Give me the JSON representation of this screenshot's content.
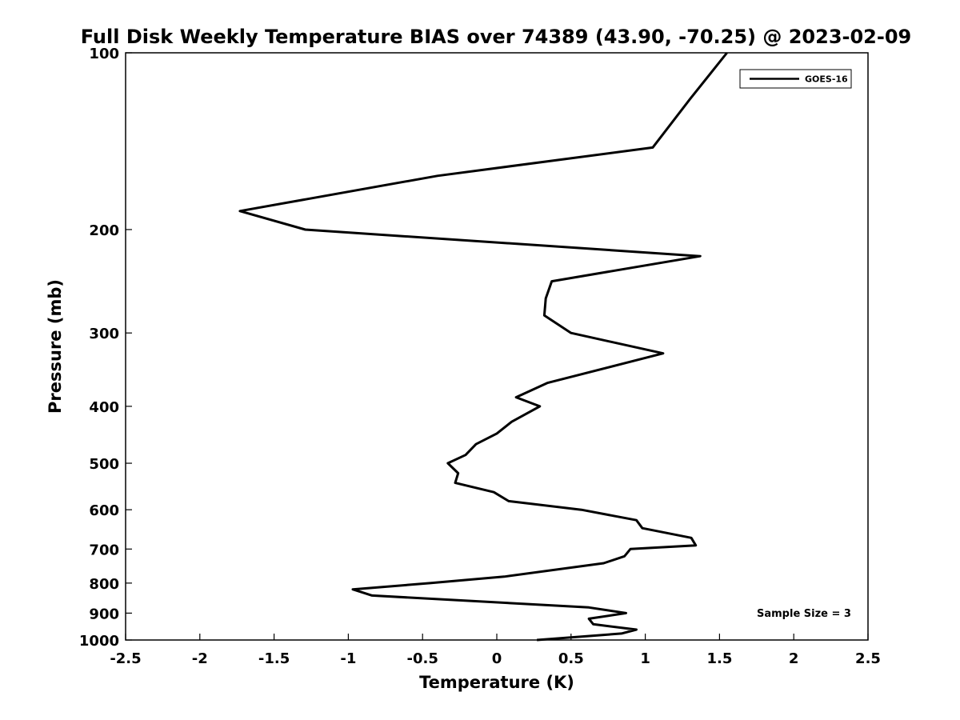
{
  "chart_data": {
    "type": "line",
    "title": "Full Disk Weekly Temperature BIAS over 74389 (43.90, -70.25) @ 2023-02-09",
    "xlabel": "Temperature (K)",
    "ylabel": "Pressure (mb)",
    "xlim": [
      -2.5,
      2.5
    ],
    "ylim": [
      1000,
      100
    ],
    "y_scale": "log",
    "x_ticks": [
      "-2.5",
      "-2",
      "-1.5",
      "-1",
      "-0.5",
      "0",
      "0.5",
      "1",
      "1.5",
      "2",
      "2.5"
    ],
    "y_ticks": [
      "100",
      "200",
      "300",
      "400",
      "500",
      "600",
      "700",
      "800",
      "900",
      "1000"
    ],
    "grid": false,
    "legend_position": "top-right",
    "annotation": "Sample Size = 3",
    "line_color": "#000000",
    "series": [
      {
        "name": "GOES-16",
        "points": [
          {
            "t": 1.55,
            "p": 100
          },
          {
            "t": 1.3,
            "p": 120
          },
          {
            "t": 1.05,
            "p": 145
          },
          {
            "t": -0.4,
            "p": 162
          },
          {
            "t": -1.73,
            "p": 186
          },
          {
            "t": -1.29,
            "p": 200
          },
          {
            "t": 1.37,
            "p": 222
          },
          {
            "t": 0.37,
            "p": 245
          },
          {
            "t": 0.33,
            "p": 262
          },
          {
            "t": 0.32,
            "p": 280
          },
          {
            "t": 0.5,
            "p": 300
          },
          {
            "t": 1.12,
            "p": 325
          },
          {
            "t": 0.34,
            "p": 365
          },
          {
            "t": 0.13,
            "p": 386
          },
          {
            "t": 0.29,
            "p": 400
          },
          {
            "t": 0.1,
            "p": 425
          },
          {
            "t": 0.0,
            "p": 445
          },
          {
            "t": -0.14,
            "p": 464
          },
          {
            "t": -0.21,
            "p": 484
          },
          {
            "t": -0.33,
            "p": 500
          },
          {
            "t": -0.26,
            "p": 520
          },
          {
            "t": -0.28,
            "p": 540
          },
          {
            "t": -0.02,
            "p": 560
          },
          {
            "t": 0.08,
            "p": 580
          },
          {
            "t": 0.57,
            "p": 600
          },
          {
            "t": 0.94,
            "p": 625
          },
          {
            "t": 0.98,
            "p": 645
          },
          {
            "t": 1.31,
            "p": 670
          },
          {
            "t": 1.34,
            "p": 690
          },
          {
            "t": 0.9,
            "p": 700
          },
          {
            "t": 0.86,
            "p": 720
          },
          {
            "t": 0.72,
            "p": 740
          },
          {
            "t": 0.05,
            "p": 780
          },
          {
            "t": -0.45,
            "p": 800
          },
          {
            "t": -0.97,
            "p": 820
          },
          {
            "t": -0.84,
            "p": 840
          },
          {
            "t": 0.62,
            "p": 880
          },
          {
            "t": 0.87,
            "p": 900
          },
          {
            "t": 0.62,
            "p": 920
          },
          {
            "t": 0.65,
            "p": 940
          },
          {
            "t": 0.94,
            "p": 960
          },
          {
            "t": 0.84,
            "p": 975
          },
          {
            "t": 0.27,
            "p": 1000
          }
        ]
      }
    ]
  }
}
